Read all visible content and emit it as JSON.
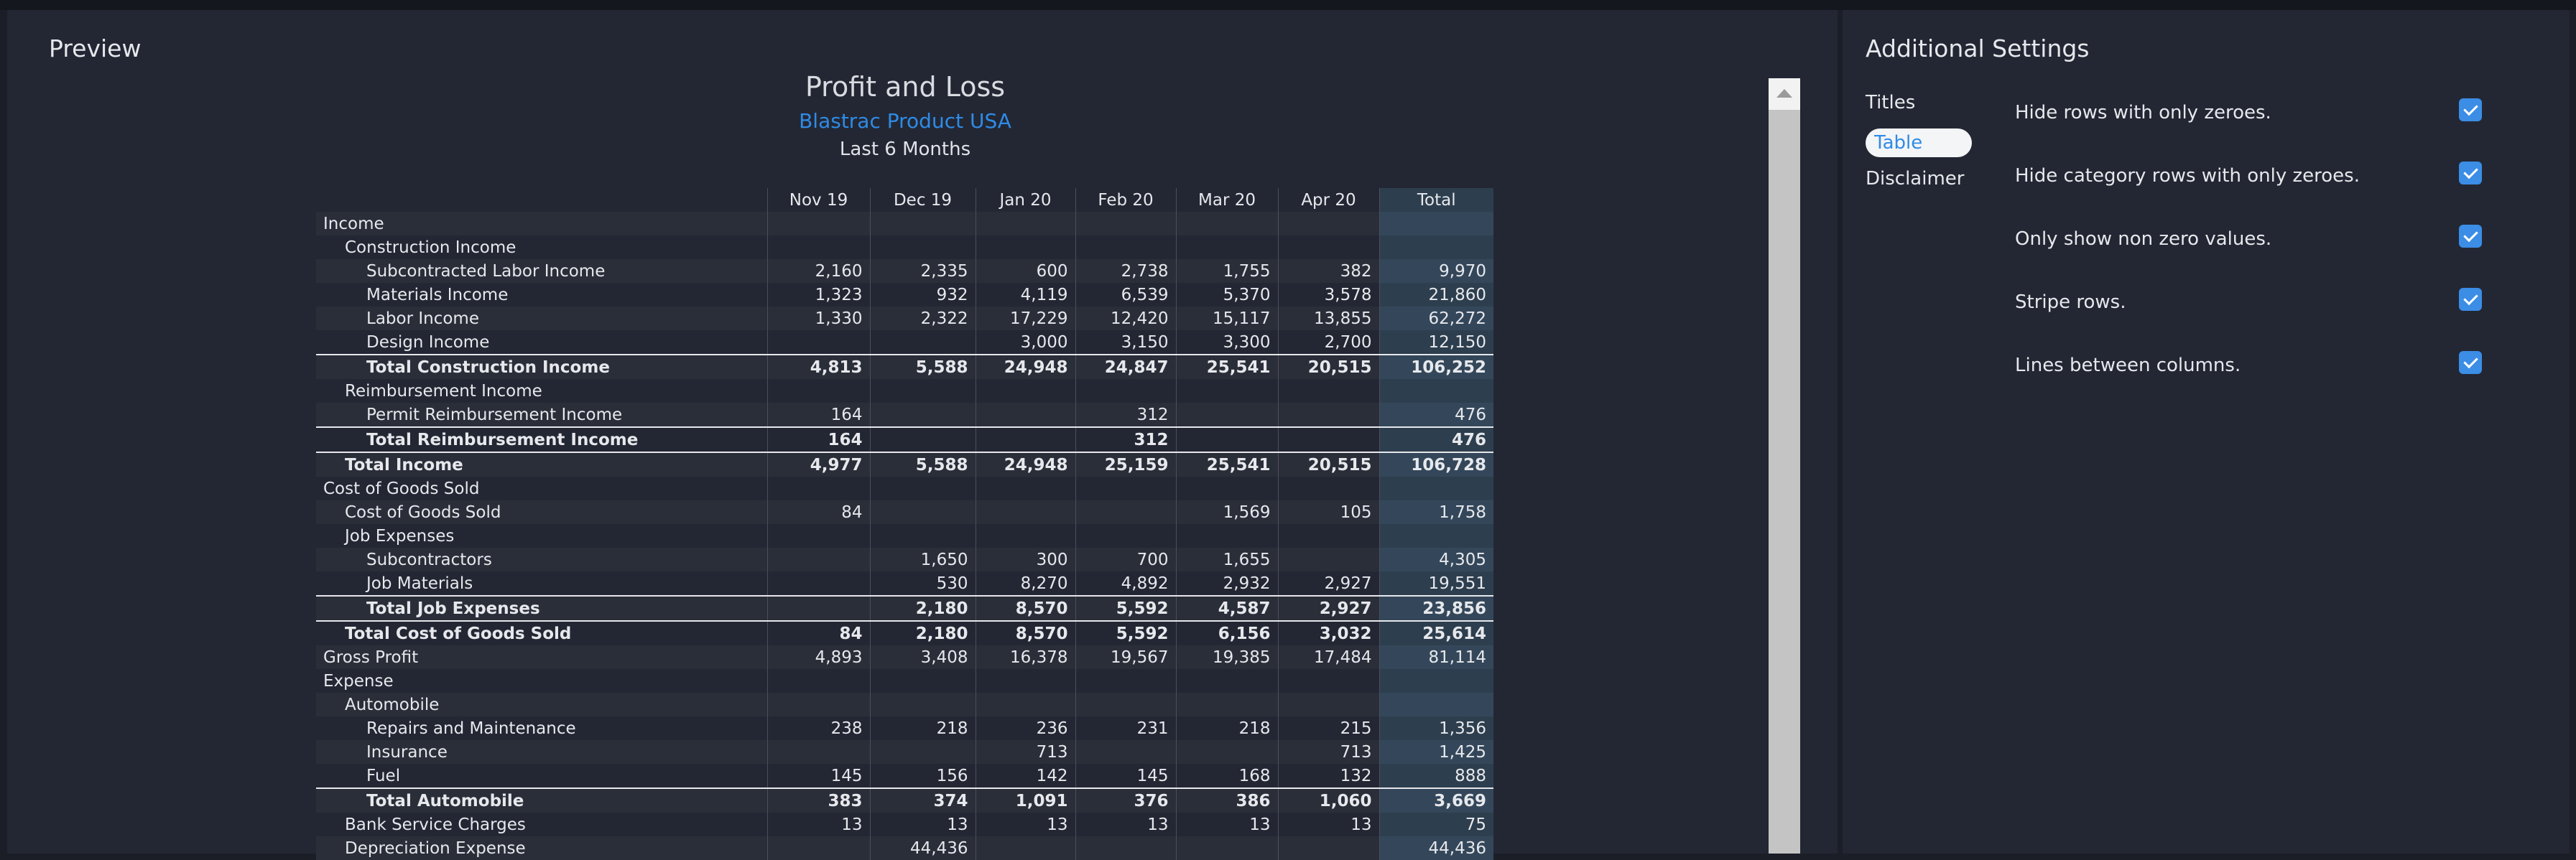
{
  "preview": {
    "title": "Preview",
    "report": {
      "title": "Profit and Loss",
      "company": "Blastrac Product USA",
      "period": "Last 6 Months",
      "columns": [
        "Nov 19",
        "Dec 19",
        "Jan 20",
        "Feb 20",
        "Mar 20",
        "Apr 20",
        "Total"
      ],
      "rows": [
        {
          "label": "Income",
          "indent": 0,
          "bold": false,
          "topline": false,
          "values": [
            "",
            "",
            "",
            "",
            "",
            "",
            ""
          ]
        },
        {
          "label": "Construction Income",
          "indent": 1,
          "bold": false,
          "topline": false,
          "values": [
            "",
            "",
            "",
            "",
            "",
            "",
            ""
          ]
        },
        {
          "label": "Subcontracted Labor Income",
          "indent": 2,
          "bold": false,
          "topline": false,
          "values": [
            "2,160",
            "2,335",
            "600",
            "2,738",
            "1,755",
            "382",
            "9,970"
          ]
        },
        {
          "label": "Materials Income",
          "indent": 2,
          "bold": false,
          "topline": false,
          "values": [
            "1,323",
            "932",
            "4,119",
            "6,539",
            "5,370",
            "3,578",
            "21,860"
          ]
        },
        {
          "label": "Labor Income",
          "indent": 2,
          "bold": false,
          "topline": false,
          "values": [
            "1,330",
            "2,322",
            "17,229",
            "12,420",
            "15,117",
            "13,855",
            "62,272"
          ]
        },
        {
          "label": "Design Income",
          "indent": 2,
          "bold": false,
          "topline": false,
          "values": [
            "",
            "",
            "3,000",
            "3,150",
            "3,300",
            "2,700",
            "12,150"
          ]
        },
        {
          "label": "Total Construction Income",
          "indent": 2,
          "bold": true,
          "topline": true,
          "values": [
            "4,813",
            "5,588",
            "24,948",
            "24,847",
            "25,541",
            "20,515",
            "106,252"
          ]
        },
        {
          "label": "Reimbursement Income",
          "indent": 1,
          "bold": false,
          "topline": false,
          "values": [
            "",
            "",
            "",
            "",
            "",
            "",
            ""
          ]
        },
        {
          "label": "Permit Reimbursement Income",
          "indent": 2,
          "bold": false,
          "topline": false,
          "values": [
            "164",
            "",
            "",
            "312",
            "",
            "",
            "476"
          ]
        },
        {
          "label": "Total Reimbursement Income",
          "indent": 2,
          "bold": true,
          "topline": true,
          "values": [
            "164",
            "",
            "",
            "312",
            "",
            "",
            "476"
          ]
        },
        {
          "label": "Total Income",
          "indent": 1,
          "bold": true,
          "topline": true,
          "values": [
            "4,977",
            "5,588",
            "24,948",
            "25,159",
            "25,541",
            "20,515",
            "106,728"
          ]
        },
        {
          "label": "Cost of Goods Sold",
          "indent": 0,
          "bold": false,
          "topline": false,
          "values": [
            "",
            "",
            "",
            "",
            "",
            "",
            ""
          ]
        },
        {
          "label": "Cost of Goods Sold",
          "indent": 1,
          "bold": false,
          "topline": false,
          "values": [
            "84",
            "",
            "",
            "",
            "1,569",
            "105",
            "1,758"
          ]
        },
        {
          "label": "Job Expenses",
          "indent": 1,
          "bold": false,
          "topline": false,
          "values": [
            "",
            "",
            "",
            "",
            "",
            "",
            ""
          ]
        },
        {
          "label": "Subcontractors",
          "indent": 2,
          "bold": false,
          "topline": false,
          "values": [
            "",
            "1,650",
            "300",
            "700",
            "1,655",
            "",
            "4,305"
          ]
        },
        {
          "label": "Job Materials",
          "indent": 2,
          "bold": false,
          "topline": false,
          "values": [
            "",
            "530",
            "8,270",
            "4,892",
            "2,932",
            "2,927",
            "19,551"
          ]
        },
        {
          "label": "Total Job Expenses",
          "indent": 2,
          "bold": true,
          "topline": true,
          "values": [
            "",
            "2,180",
            "8,570",
            "5,592",
            "4,587",
            "2,927",
            "23,856"
          ]
        },
        {
          "label": "Total Cost of Goods Sold",
          "indent": 1,
          "bold": true,
          "topline": true,
          "values": [
            "84",
            "2,180",
            "8,570",
            "5,592",
            "6,156",
            "3,032",
            "25,614"
          ]
        },
        {
          "label": "Gross Profit",
          "indent": 0,
          "bold": false,
          "topline": false,
          "values": [
            "4,893",
            "3,408",
            "16,378",
            "19,567",
            "19,385",
            "17,484",
            "81,114"
          ]
        },
        {
          "label": "Expense",
          "indent": 0,
          "bold": false,
          "topline": false,
          "values": [
            "",
            "",
            "",
            "",
            "",
            "",
            ""
          ]
        },
        {
          "label": "Automobile",
          "indent": 1,
          "bold": false,
          "topline": false,
          "values": [
            "",
            "",
            "",
            "",
            "",
            "",
            ""
          ]
        },
        {
          "label": "Repairs and Maintenance",
          "indent": 2,
          "bold": false,
          "topline": false,
          "values": [
            "238",
            "218",
            "236",
            "231",
            "218",
            "215",
            "1,356"
          ]
        },
        {
          "label": "Insurance",
          "indent": 2,
          "bold": false,
          "topline": false,
          "values": [
            "",
            "",
            "713",
            "",
            "",
            "713",
            "1,425"
          ]
        },
        {
          "label": "Fuel",
          "indent": 2,
          "bold": false,
          "topline": false,
          "values": [
            "145",
            "156",
            "142",
            "145",
            "168",
            "132",
            "888"
          ]
        },
        {
          "label": "Total Automobile",
          "indent": 2,
          "bold": true,
          "topline": true,
          "values": [
            "383",
            "374",
            "1,091",
            "376",
            "386",
            "1,060",
            "3,669"
          ]
        },
        {
          "label": "Bank Service Charges",
          "indent": 1,
          "bold": false,
          "topline": false,
          "values": [
            "13",
            "13",
            "13",
            "13",
            "13",
            "13",
            "75"
          ]
        },
        {
          "label": "Depreciation Expense",
          "indent": 1,
          "bold": false,
          "topline": false,
          "values": [
            "",
            "44,436",
            "",
            "",
            "",
            "",
            "44,436"
          ]
        }
      ]
    }
  },
  "settings": {
    "title": "Additional Settings",
    "tabs": [
      {
        "label": "Titles",
        "active": false
      },
      {
        "label": "Table",
        "active": true
      },
      {
        "label": "Disclaimer",
        "active": false
      }
    ],
    "options": [
      {
        "label": "Hide rows with only zeroes.",
        "checked": true
      },
      {
        "label": "Hide category rows with only zeroes.",
        "checked": true
      },
      {
        "label": "Only show non zero values.",
        "checked": true
      },
      {
        "label": "Stripe rows.",
        "checked": true
      },
      {
        "label": "Lines between columns.",
        "checked": true
      }
    ]
  },
  "colors": {
    "background": "#232733",
    "accent": "#2f8be6",
    "total_column": "#2d3e4e",
    "checkbox": "#3b8de6"
  }
}
